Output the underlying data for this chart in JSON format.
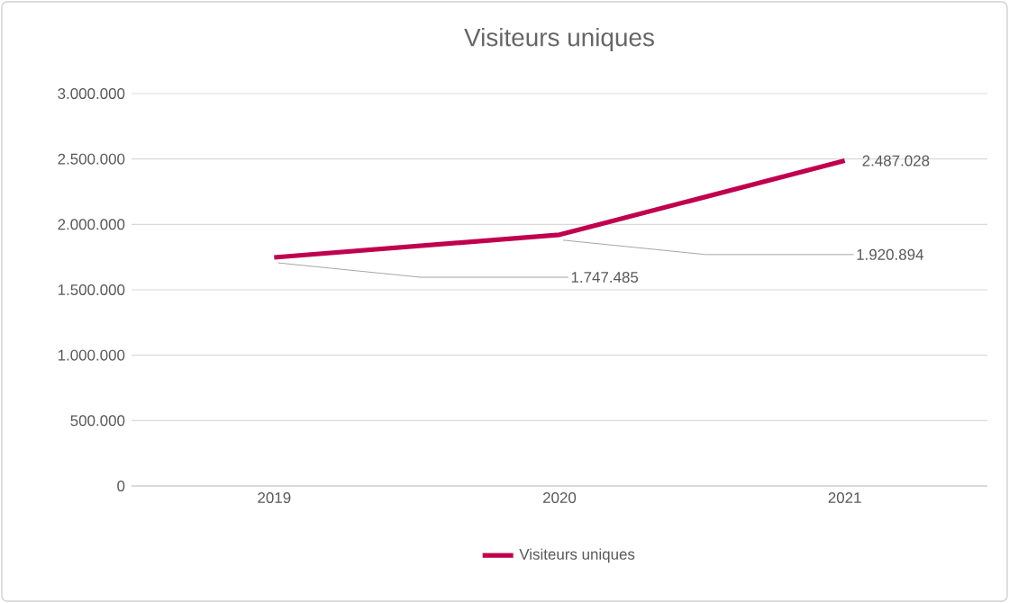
{
  "chart_data": {
    "type": "line",
    "title": "Visiteurs uniques",
    "categories": [
      "2019",
      "2020",
      "2021"
    ],
    "series": [
      {
        "name": "Visiteurs uniques",
        "color": "#c0004f",
        "values": [
          1747485,
          1920894,
          2487028
        ],
        "value_labels": [
          "1.747.485",
          "1.920.894",
          "2.487.028"
        ]
      }
    ],
    "ylim": [
      0,
      3000000
    ],
    "yticks": [
      {
        "value": 0,
        "label": "0"
      },
      {
        "value": 500000,
        "label": "500.000"
      },
      {
        "value": 1000000,
        "label": "1.000.000"
      },
      {
        "value": 1500000,
        "label": "1.500.000"
      },
      {
        "value": 2000000,
        "label": "2.000.000"
      },
      {
        "value": 2500000,
        "label": "2.500.000"
      },
      {
        "value": 3000000,
        "label": "3.000.000"
      }
    ],
    "grid": "y",
    "legend": "bottom",
    "marker": "none",
    "line_style": "solid"
  }
}
